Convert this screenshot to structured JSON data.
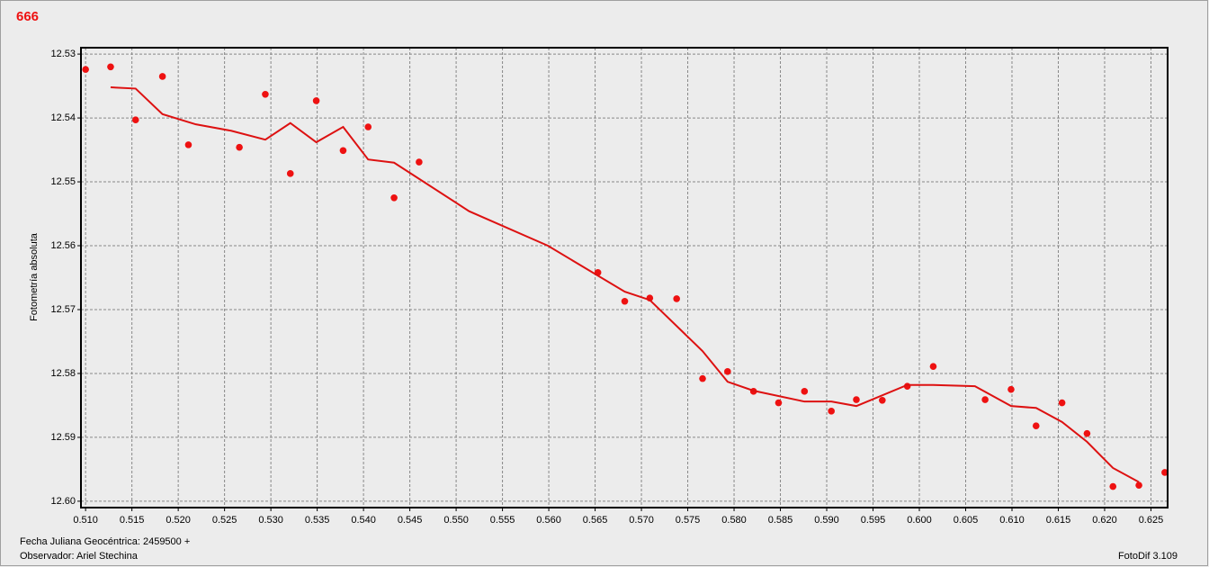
{
  "chart_data": {
    "type": "scatter",
    "title": "666",
    "ylabel": "Fotometría absoluta",
    "xlabel": "Fecha Juliana Geocéntrica: 2459500 +",
    "xlim": [
      0.5095,
      0.6268
    ],
    "ylim": [
      12.529,
      12.601
    ],
    "y_inverted": true,
    "grid": true,
    "xticks": [
      {
        "value": 0.51,
        "label": "0.510"
      },
      0.515,
      {
        "value": 0.52,
        "label": "0.520"
      },
      0.525,
      {
        "value": 0.53,
        "label": "0.530"
      },
      0.535,
      {
        "value": 0.54,
        "label": "0.540"
      },
      0.545,
      {
        "value": 0.55,
        "label": "0.550"
      },
      0.555,
      {
        "value": 0.56,
        "label": "0.560"
      },
      0.565,
      {
        "value": 0.57,
        "label": "0.570"
      },
      0.575,
      {
        "value": 0.58,
        "label": "0.580"
      },
      0.585,
      {
        "value": 0.59,
        "label": "0.590"
      },
      0.595,
      {
        "value": 0.6,
        "label": "0.600"
      },
      0.605,
      {
        "value": 0.61,
        "label": "0.610"
      },
      0.615,
      {
        "value": 0.62,
        "label": "0.620"
      },
      0.625
    ],
    "yticks": [
      12.53,
      12.54,
      12.55,
      12.56,
      12.57,
      12.58,
      12.59,
      {
        "value": 12.6,
        "label": "12.60"
      }
    ],
    "series": [
      {
        "type": "scatter",
        "color": "#ee1111",
        "x": [
          0.51,
          0.5127,
          0.5154,
          0.5183,
          0.5211,
          0.5266,
          0.5294,
          0.5321,
          0.5349,
          0.5378,
          0.5405,
          0.5433,
          0.546,
          0.5653,
          0.5682,
          0.5709,
          0.5738,
          0.5766,
          0.5793,
          0.5821,
          0.5848,
          0.5876,
          0.5905,
          0.5932,
          0.596,
          0.5987,
          0.6015,
          0.6071,
          0.6099,
          0.6126,
          0.6154,
          0.6181,
          0.6209,
          0.6237,
          0.6265
        ],
        "values": [
          12.5324,
          12.532,
          12.5403,
          12.5335,
          12.5442,
          12.5446,
          12.5363,
          12.5487,
          12.5373,
          12.5451,
          12.5414,
          12.5525,
          12.5469,
          12.5642,
          12.5687,
          12.5682,
          12.5683,
          12.5808,
          12.5797,
          12.5828,
          12.5846,
          12.5828,
          12.5859,
          12.5841,
          12.5842,
          12.582,
          12.5789,
          12.5841,
          12.5825,
          12.5882,
          12.5846,
          12.5894,
          12.5977,
          12.5975,
          12.5955
        ]
      },
      {
        "type": "line",
        "color": "#dd1111",
        "x": [
          0.5127,
          0.5154,
          0.5183,
          0.5219,
          0.5257,
          0.5294,
          0.5321,
          0.5349,
          0.5378,
          0.5405,
          0.5433,
          0.5514,
          0.5599,
          0.5682,
          0.5709,
          0.5766,
          0.5793,
          0.5821,
          0.5876,
          0.5905,
          0.5932,
          0.5987,
          0.6015,
          0.606,
          0.6099,
          0.6126,
          0.6154,
          0.6181,
          0.6209,
          0.6237
        ],
        "values": [
          12.5352,
          12.5354,
          12.5394,
          12.541,
          12.542,
          12.5434,
          12.5408,
          12.5438,
          12.5414,
          12.5465,
          12.547,
          12.5546,
          12.56,
          12.5672,
          12.5685,
          12.5765,
          12.5813,
          12.5827,
          12.5844,
          12.5844,
          12.5851,
          12.5818,
          12.5818,
          12.582,
          12.5851,
          12.5854,
          12.5876,
          12.5907,
          12.5948,
          12.597
        ]
      }
    ]
  },
  "footer": {
    "observer": "Observador: Ariel Stechina",
    "version": "FotoDif 3.109"
  }
}
